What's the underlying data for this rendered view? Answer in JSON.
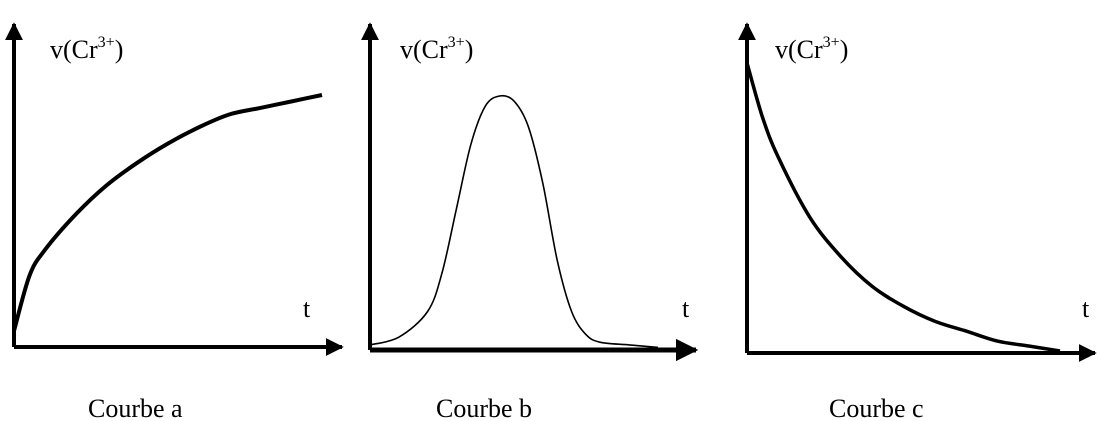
{
  "chart_data": [
    {
      "type": "line",
      "title": "",
      "caption": "Courbe a",
      "ylabel_main": "v(Cr",
      "ylabel_sup": "3+",
      "ylabel_close": ")",
      "xlabel": "t",
      "color": "#000000",
      "shape": "increasing-saturating",
      "x": [
        0,
        0.05,
        0.1,
        0.2,
        0.3,
        0.4,
        0.5,
        0.6,
        0.7,
        0.8,
        0.9,
        1.0
      ],
      "y": [
        0.05,
        0.22,
        0.3,
        0.41,
        0.5,
        0.57,
        0.63,
        0.68,
        0.72,
        0.74,
        0.76,
        0.78
      ]
    },
    {
      "type": "line",
      "title": "",
      "caption": "Courbe b",
      "ylabel_main": "v(Cr",
      "ylabel_sup": "3+",
      "ylabel_close": ")",
      "xlabel": "t",
      "color": "#000000",
      "shape": "bell",
      "x": [
        0,
        0.1,
        0.2,
        0.25,
        0.3,
        0.35,
        0.4,
        0.45,
        0.5,
        0.55,
        0.6,
        0.65,
        0.7,
        0.75,
        0.8,
        0.9,
        1.0
      ],
      "y": [
        0.02,
        0.05,
        0.15,
        0.3,
        0.55,
        0.8,
        0.95,
        0.99,
        0.97,
        0.87,
        0.65,
        0.35,
        0.15,
        0.06,
        0.03,
        0.02,
        0.01
      ]
    },
    {
      "type": "line",
      "title": "",
      "caption": "Courbe c",
      "ylabel_main": "v(Cr",
      "ylabel_sup": "3+",
      "ylabel_close": ")",
      "xlabel": "t",
      "color": "#000000",
      "shape": "decreasing",
      "x": [
        0,
        0.05,
        0.1,
        0.2,
        0.3,
        0.4,
        0.5,
        0.6,
        0.7,
        0.8,
        0.9,
        1.0
      ],
      "y": [
        0.58,
        0.47,
        0.39,
        0.27,
        0.19,
        0.13,
        0.09,
        0.06,
        0.04,
        0.02,
        0.01,
        0.0
      ]
    }
  ]
}
